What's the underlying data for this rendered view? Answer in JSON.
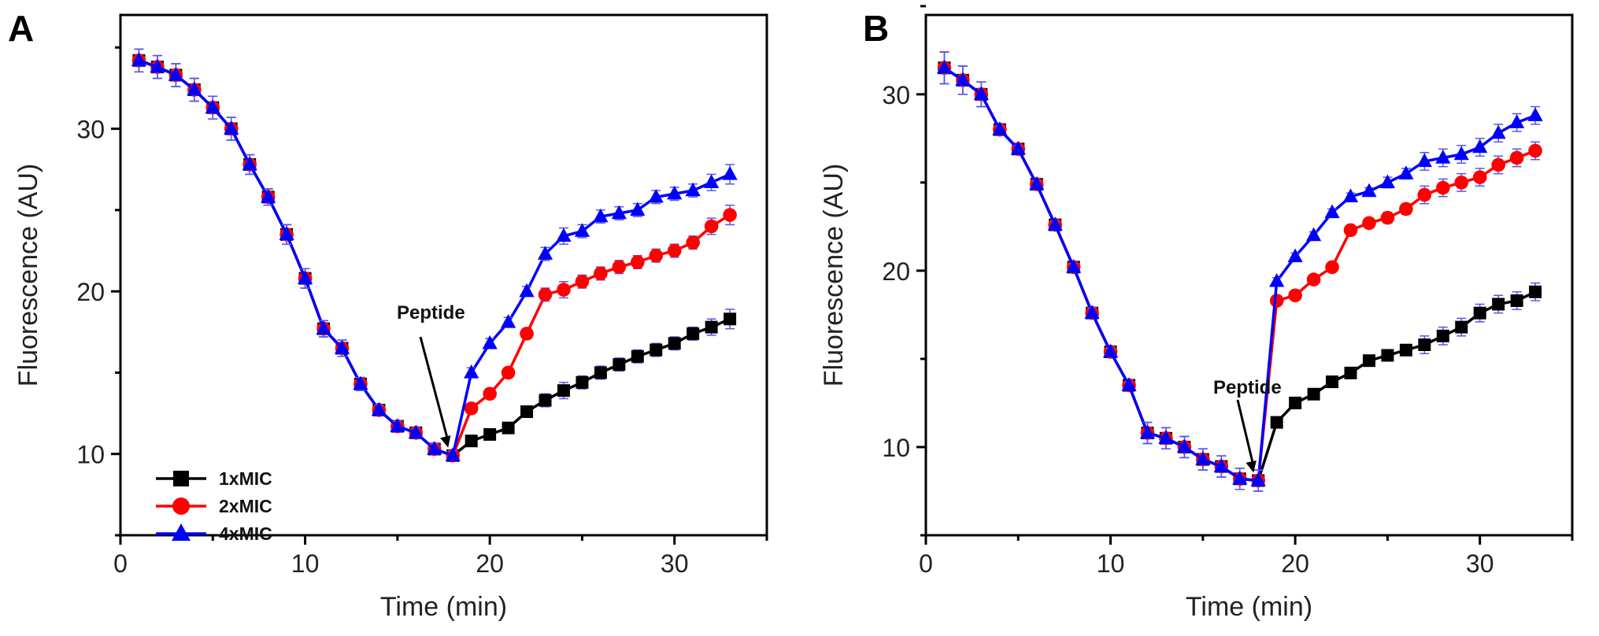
{
  "chart_data": [
    {
      "type": "line",
      "panel_label": "A",
      "xlabel": "Time (min)",
      "ylabel": "Fluorescence (AU)",
      "xlim": [
        0,
        35
      ],
      "ylim": [
        5,
        37
      ],
      "xticks": [
        0,
        10,
        20,
        30
      ],
      "yticks": [
        10,
        20,
        30
      ],
      "grid": false,
      "legend_position": "bottom-left",
      "annotation": {
        "text": "Peptide",
        "points_to_x": 18
      },
      "x": [
        1,
        2,
        3,
        4,
        5,
        6,
        7,
        8,
        9,
        10,
        11,
        12,
        13,
        14,
        15,
        16,
        17,
        18,
        19,
        20,
        21,
        22,
        23,
        24,
        25,
        26,
        27,
        28,
        29,
        30,
        31,
        32,
        33
      ],
      "series": [
        {
          "name": "1xMIC",
          "color": "#000000",
          "marker": "square",
          "values": [
            34.2,
            33.8,
            33.3,
            32.4,
            31.3,
            30.0,
            27.8,
            25.8,
            23.5,
            20.8,
            17.7,
            16.5,
            14.3,
            12.7,
            11.7,
            11.3,
            10.3,
            9.9,
            10.8,
            11.2,
            11.6,
            12.6,
            13.3,
            13.9,
            14.4,
            15.0,
            15.5,
            16.0,
            16.4,
            16.8,
            17.4,
            17.8,
            18.3
          ]
        },
        {
          "name": "2xMIC",
          "color": "#ff0000",
          "marker": "circle",
          "values": [
            34.2,
            33.8,
            33.3,
            32.4,
            31.3,
            30.0,
            27.8,
            25.8,
            23.5,
            20.8,
            17.7,
            16.5,
            14.3,
            12.7,
            11.7,
            11.3,
            10.3,
            9.9,
            12.8,
            13.7,
            15.0,
            17.4,
            19.8,
            20.1,
            20.6,
            21.1,
            21.5,
            21.8,
            22.2,
            22.5,
            23.0,
            24.0,
            24.7
          ]
        },
        {
          "name": "4xMIC",
          "color": "#0000ff",
          "marker": "triangle",
          "values": [
            34.2,
            33.8,
            33.3,
            32.4,
            31.3,
            30.0,
            27.8,
            25.8,
            23.5,
            20.8,
            17.7,
            16.5,
            14.3,
            12.7,
            11.7,
            11.3,
            10.3,
            9.9,
            15.0,
            16.8,
            18.1,
            20.0,
            22.3,
            23.4,
            23.7,
            24.6,
            24.8,
            25.0,
            25.8,
            26.0,
            26.2,
            26.7,
            27.2
          ]
        }
      ],
      "error": [
        0.7,
        0.7,
        0.7,
        0.7,
        0.7,
        0.7,
        0.6,
        0.5,
        0.6,
        0.6,
        0.5,
        0.5,
        0.4,
        0.3,
        0.3,
        0.3,
        0.3,
        0.3,
        0.3,
        0.3,
        0.3,
        0.3,
        0.4,
        0.5,
        0.4,
        0.4,
        0.4,
        0.4,
        0.4,
        0.4,
        0.4,
        0.5,
        0.6
      ]
    },
    {
      "type": "line",
      "panel_label": "B",
      "xlabel": "Time (min)",
      "ylabel": "Fluorescence (AU)",
      "xlim": [
        0,
        35
      ],
      "ylim": [
        5,
        34.5
      ],
      "xticks": [
        0,
        10,
        20,
        30
      ],
      "yticks": [
        10,
        20,
        30
      ],
      "grid": false,
      "annotation": {
        "text": "Peptide",
        "points_to_x": 18
      },
      "x": [
        1,
        2,
        3,
        4,
        5,
        6,
        7,
        8,
        9,
        10,
        11,
        12,
        13,
        14,
        15,
        16,
        17,
        18,
        19,
        20,
        21,
        22,
        23,
        24,
        25,
        26,
        27,
        28,
        29,
        30,
        31,
        32,
        33
      ],
      "series": [
        {
          "name": "1xMIC",
          "color": "#000000",
          "marker": "square",
          "values": [
            31.5,
            30.8,
            30.0,
            28.0,
            26.9,
            24.9,
            22.6,
            20.2,
            17.6,
            15.4,
            13.5,
            10.8,
            10.5,
            10.0,
            9.3,
            8.9,
            8.2,
            8.1,
            11.4,
            12.5,
            13.0,
            13.7,
            14.2,
            14.9,
            15.2,
            15.5,
            15.8,
            16.3,
            16.8,
            17.6,
            18.1,
            18.3,
            18.8
          ]
        },
        {
          "name": "2xMIC",
          "color": "#ff0000",
          "marker": "circle",
          "values": [
            31.5,
            30.8,
            30.0,
            28.0,
            26.9,
            24.9,
            22.6,
            20.2,
            17.6,
            15.4,
            13.5,
            10.8,
            10.5,
            10.0,
            9.3,
            8.9,
            8.2,
            8.1,
            18.3,
            18.6,
            19.5,
            20.2,
            22.3,
            22.7,
            23.0,
            23.5,
            24.3,
            24.7,
            25.0,
            25.3,
            26.0,
            26.4,
            26.8
          ]
        },
        {
          "name": "4xMIC",
          "color": "#0000ff",
          "marker": "triangle",
          "values": [
            31.5,
            30.8,
            30.0,
            28.0,
            26.9,
            24.9,
            22.6,
            20.2,
            17.6,
            15.4,
            13.5,
            10.8,
            10.5,
            10.0,
            9.3,
            8.9,
            8.2,
            8.1,
            19.4,
            20.8,
            22.0,
            23.3,
            24.2,
            24.5,
            25.0,
            25.5,
            26.2,
            26.4,
            26.6,
            27.0,
            27.8,
            28.4,
            28.8
          ]
        }
      ],
      "error": [
        0.9,
        0.8,
        0.7,
        0.2,
        0.2,
        0.2,
        0.2,
        0.2,
        0.3,
        0.2,
        0.2,
        0.6,
        0.6,
        0.6,
        0.6,
        0.6,
        0.6,
        0.6,
        0.2,
        0.2,
        0.2,
        0.2,
        0.2,
        0.2,
        0.3,
        0.3,
        0.5,
        0.5,
        0.5,
        0.5,
        0.5,
        0.5,
        0.5
      ]
    }
  ]
}
